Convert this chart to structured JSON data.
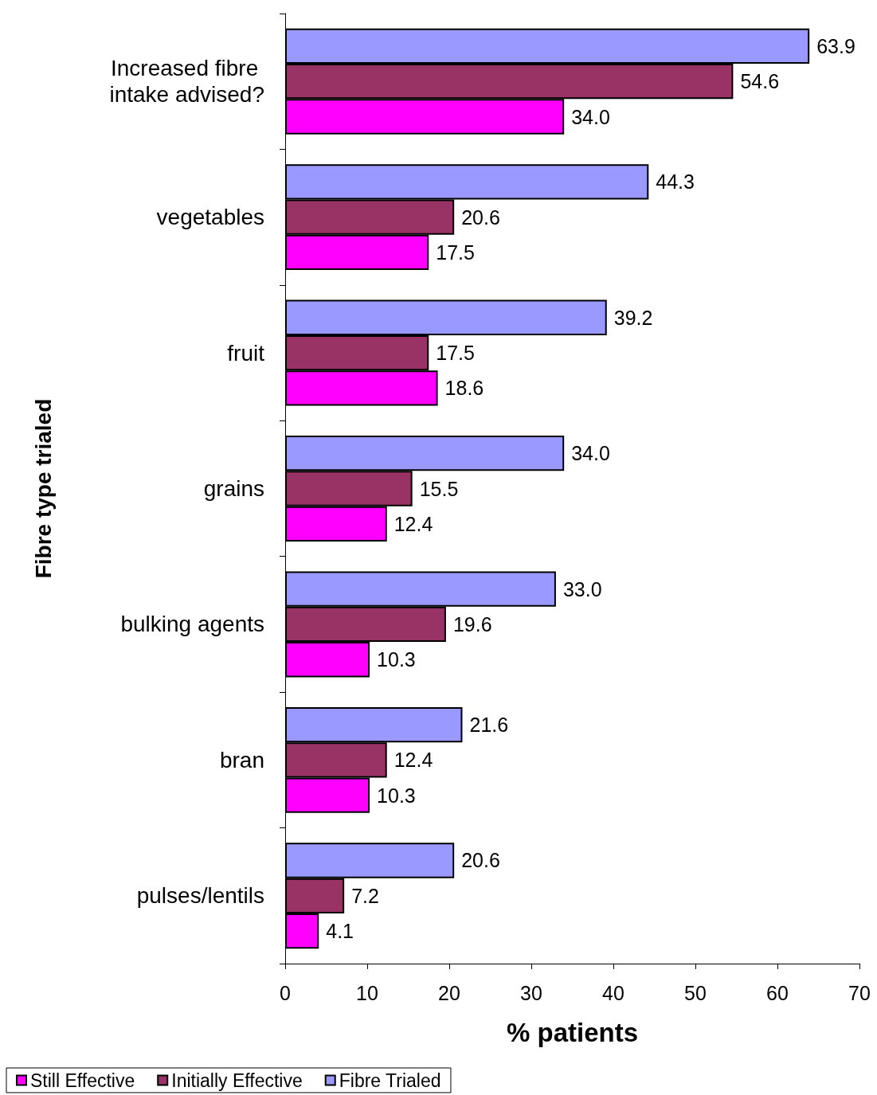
{
  "chart_data": {
    "type": "bar",
    "orientation": "horizontal",
    "xlabel": "% patients",
    "ylabel": "Fibre type trialed",
    "categories": [
      "Increased fibre intake advised?",
      "vegetables",
      "fruit",
      "grains",
      "bulking agents",
      "bran",
      "pulses/lentils"
    ],
    "series": [
      {
        "name": "Still Effective",
        "color": "#ff00ff",
        "values": [
          34.0,
          17.5,
          18.6,
          12.4,
          10.3,
          10.3,
          4.1
        ],
        "value_labels": [
          "34.0",
          "17.5",
          "18.6",
          "12.4",
          "10.3",
          "10.3",
          "4.1"
        ]
      },
      {
        "name": "Initially Effective",
        "color": "#993366",
        "values": [
          54.6,
          20.6,
          17.5,
          15.5,
          19.6,
          12.4,
          7.2
        ],
        "value_labels": [
          "54.6",
          "20.6",
          "17.5",
          "15.5",
          "19.6",
          "12.4",
          "7.2"
        ]
      },
      {
        "name": "Fibre Trialed",
        "color": "#9999ff",
        "values": [
          63.9,
          44.3,
          39.2,
          34.0,
          33.0,
          21.6,
          20.6
        ],
        "value_labels": [
          "63.9",
          "44.3",
          "39.2",
          "34.0",
          "33.0",
          "21.6",
          "20.6"
        ]
      }
    ],
    "xlim": [
      0,
      70
    ],
    "xticks": [
      0,
      10,
      20,
      30,
      40,
      50,
      60,
      70
    ],
    "legend": "bottom left"
  }
}
